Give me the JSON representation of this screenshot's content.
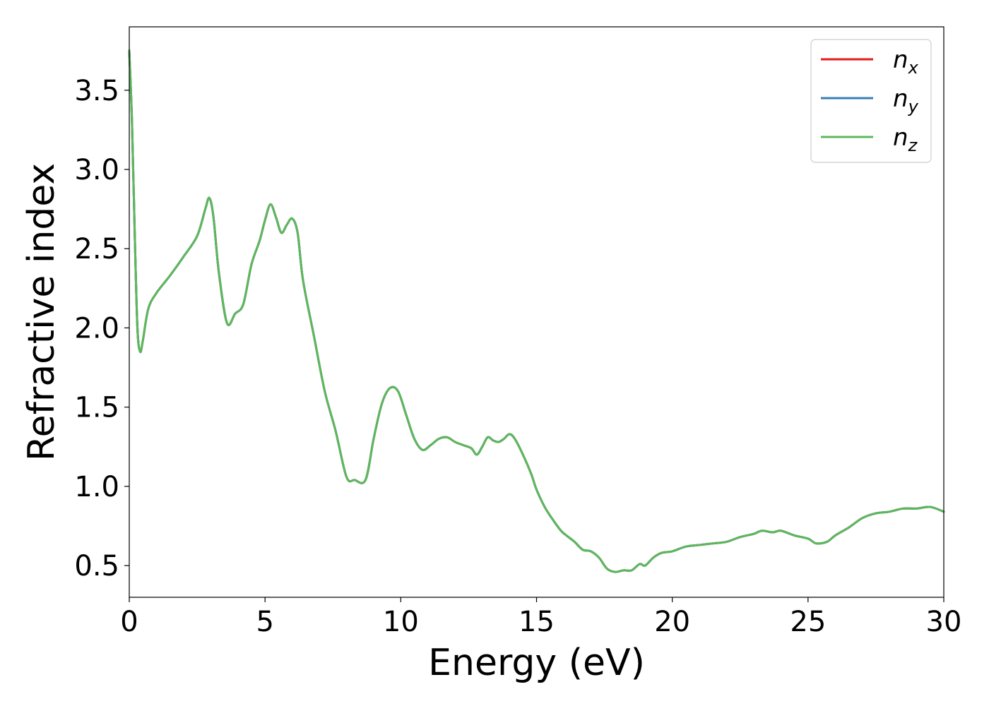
{
  "chart_data": {
    "type": "line",
    "title": "",
    "xlabel": "Energy (eV)",
    "ylabel": "Refractive index",
    "xlim": [
      0,
      30
    ],
    "ylim": [
      0.3,
      3.9
    ],
    "xticks": [
      0,
      5,
      10,
      15,
      20,
      25,
      30
    ],
    "xtick_labels": [
      "0",
      "5",
      "10",
      "15",
      "20",
      "25",
      "30"
    ],
    "yticks": [
      0.5,
      1.0,
      1.5,
      2.0,
      2.5,
      3.0,
      3.5
    ],
    "ytick_labels": [
      "0.5",
      "1.0",
      "1.5",
      "2.0",
      "2.5",
      "3.0",
      "3.5"
    ],
    "grid": false,
    "legend_position": "top-right",
    "x": [
      0.0,
      0.1,
      0.2,
      0.3,
      0.4,
      0.5,
      0.7,
      1.0,
      1.5,
      2.0,
      2.5,
      2.8,
      2.95,
      3.1,
      3.3,
      3.6,
      3.9,
      4.2,
      4.5,
      4.8,
      5.0,
      5.2,
      5.4,
      5.6,
      5.8,
      6.0,
      6.2,
      6.4,
      6.8,
      7.2,
      7.6,
      8.0,
      8.3,
      8.7,
      9.0,
      9.3,
      9.6,
      9.9,
      10.2,
      10.5,
      10.8,
      11.1,
      11.4,
      11.7,
      12.0,
      12.3,
      12.6,
      12.8,
      13.0,
      13.2,
      13.4,
      13.6,
      13.8,
      14.0,
      14.2,
      14.5,
      14.8,
      15.0,
      15.3,
      15.6,
      15.9,
      16.1,
      16.4,
      16.7,
      17.0,
      17.3,
      17.6,
      17.9,
      18.2,
      18.5,
      18.8,
      19.0,
      19.3,
      19.6,
      20.0,
      20.5,
      21.0,
      21.5,
      22.0,
      22.5,
      23.0,
      23.3,
      23.7,
      24.0,
      24.5,
      25.0,
      25.3,
      25.7,
      26.0,
      26.5,
      27.0,
      27.5,
      28.0,
      28.5,
      29.0,
      29.5,
      30.0
    ],
    "series": [
      {
        "name": "x",
        "color": "#e41a1c",
        "values": [
          3.75,
          3.3,
          2.6,
          2.0,
          1.85,
          1.92,
          2.12,
          2.22,
          2.33,
          2.45,
          2.58,
          2.75,
          2.82,
          2.7,
          2.35,
          2.03,
          2.09,
          2.15,
          2.4,
          2.55,
          2.68,
          2.78,
          2.7,
          2.6,
          2.65,
          2.69,
          2.6,
          2.3,
          1.95,
          1.6,
          1.35,
          1.06,
          1.04,
          1.04,
          1.3,
          1.52,
          1.62,
          1.6,
          1.45,
          1.3,
          1.23,
          1.26,
          1.3,
          1.31,
          1.28,
          1.26,
          1.24,
          1.2,
          1.25,
          1.31,
          1.29,
          1.28,
          1.3,
          1.33,
          1.3,
          1.2,
          1.08,
          0.98,
          0.87,
          0.79,
          0.72,
          0.69,
          0.65,
          0.6,
          0.59,
          0.55,
          0.48,
          0.46,
          0.47,
          0.47,
          0.51,
          0.5,
          0.55,
          0.58,
          0.59,
          0.62,
          0.63,
          0.64,
          0.65,
          0.68,
          0.7,
          0.72,
          0.71,
          0.72,
          0.69,
          0.67,
          0.64,
          0.65,
          0.69,
          0.74,
          0.8,
          0.83,
          0.84,
          0.86,
          0.86,
          0.87,
          0.84
        ]
      },
      {
        "name": "y",
        "color": "#377eb8",
        "values": [
          3.75,
          3.3,
          2.6,
          2.0,
          1.85,
          1.92,
          2.12,
          2.22,
          2.33,
          2.45,
          2.58,
          2.75,
          2.82,
          2.7,
          2.35,
          2.03,
          2.09,
          2.15,
          2.4,
          2.55,
          2.68,
          2.78,
          2.7,
          2.6,
          2.65,
          2.69,
          2.6,
          2.3,
          1.95,
          1.6,
          1.35,
          1.06,
          1.04,
          1.04,
          1.3,
          1.52,
          1.62,
          1.6,
          1.45,
          1.3,
          1.23,
          1.26,
          1.3,
          1.31,
          1.28,
          1.26,
          1.24,
          1.2,
          1.25,
          1.31,
          1.29,
          1.28,
          1.3,
          1.33,
          1.3,
          1.2,
          1.08,
          0.98,
          0.87,
          0.79,
          0.72,
          0.69,
          0.65,
          0.6,
          0.59,
          0.55,
          0.48,
          0.46,
          0.47,
          0.47,
          0.51,
          0.5,
          0.55,
          0.58,
          0.59,
          0.62,
          0.63,
          0.64,
          0.65,
          0.68,
          0.7,
          0.72,
          0.71,
          0.72,
          0.69,
          0.67,
          0.64,
          0.65,
          0.69,
          0.74,
          0.8,
          0.83,
          0.84,
          0.86,
          0.86,
          0.87,
          0.84
        ]
      },
      {
        "name": "z",
        "color": "#5cb85c",
        "values": [
          3.75,
          3.3,
          2.6,
          2.0,
          1.85,
          1.92,
          2.12,
          2.22,
          2.33,
          2.45,
          2.58,
          2.75,
          2.82,
          2.7,
          2.35,
          2.03,
          2.09,
          2.15,
          2.4,
          2.55,
          2.68,
          2.78,
          2.7,
          2.6,
          2.65,
          2.69,
          2.6,
          2.3,
          1.95,
          1.6,
          1.35,
          1.06,
          1.04,
          1.04,
          1.3,
          1.52,
          1.62,
          1.6,
          1.45,
          1.3,
          1.23,
          1.26,
          1.3,
          1.31,
          1.28,
          1.26,
          1.24,
          1.2,
          1.25,
          1.31,
          1.29,
          1.28,
          1.3,
          1.33,
          1.3,
          1.2,
          1.08,
          0.98,
          0.87,
          0.79,
          0.72,
          0.69,
          0.65,
          0.6,
          0.59,
          0.55,
          0.48,
          0.46,
          0.47,
          0.47,
          0.51,
          0.5,
          0.55,
          0.58,
          0.59,
          0.62,
          0.63,
          0.64,
          0.65,
          0.68,
          0.7,
          0.72,
          0.71,
          0.72,
          0.69,
          0.67,
          0.64,
          0.65,
          0.69,
          0.74,
          0.8,
          0.83,
          0.84,
          0.86,
          0.86,
          0.87,
          0.84
        ]
      }
    ],
    "legend": {
      "entries": [
        {
          "main": "n",
          "sub": "x"
        },
        {
          "main": "n",
          "sub": "y"
        },
        {
          "main": "n",
          "sub": "z"
        }
      ]
    }
  }
}
